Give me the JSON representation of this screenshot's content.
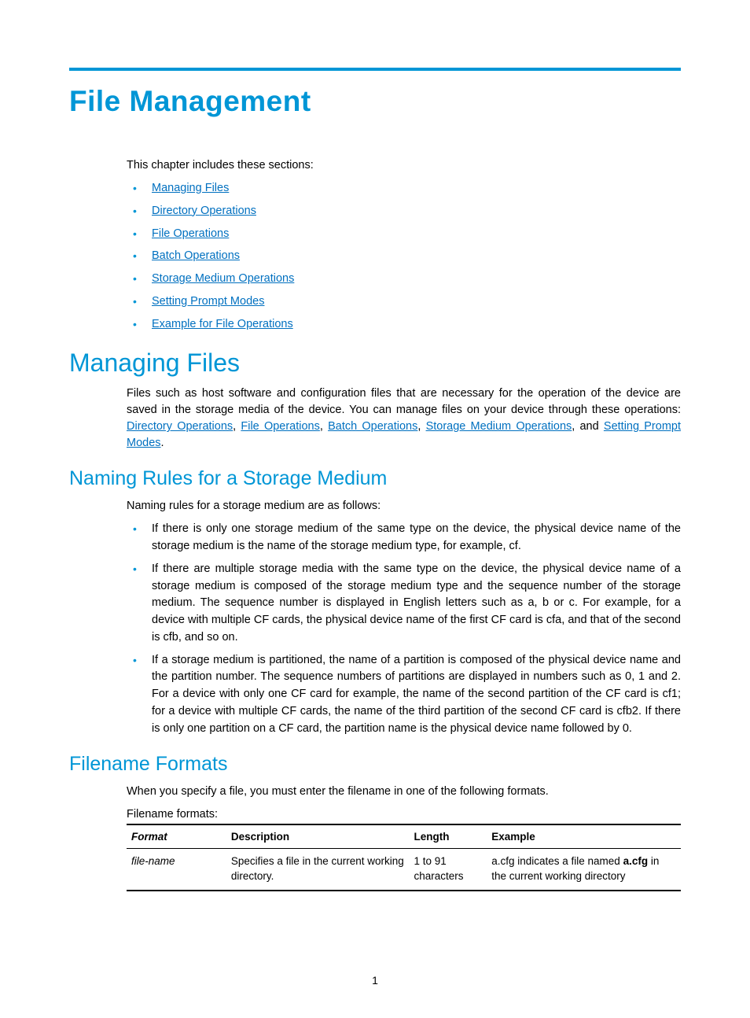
{
  "colors": {
    "accent": "#0096d6",
    "link": "#0070c0",
    "text": "#000000",
    "background": "#ffffff"
  },
  "title": "File Management",
  "intro": "This chapter includes these sections:",
  "toc": [
    "Managing Files",
    "Directory Operations",
    "File Operations",
    "Batch Operations",
    "Storage Medium Operations",
    "Setting Prompt Modes",
    "Example for File Operations"
  ],
  "sections": {
    "managing": {
      "heading": "Managing Files",
      "para_pre": "Files such as host software and configuration files that are necessary for the operation of the device are saved in the storage media of the device. You can manage files on your device through these operations: ",
      "links": [
        "Directory Operations",
        "File Operations",
        "Batch Operations",
        "Storage Medium Operations"
      ],
      "and_word": ", and ",
      "last_link": "Setting Prompt Modes",
      "period": "."
    },
    "naming": {
      "heading": "Naming Rules for a Storage Medium",
      "lead": "Naming rules for a storage medium are as follows:",
      "bullets": [
        "If there is only one storage medium of the same type on the device, the physical device name of the storage medium is the name of the storage medium type, for example, cf.",
        "If there are multiple storage media with the same type on the device, the physical device name of a storage medium is composed of the storage medium type and the sequence number of the storage medium. The sequence number is displayed in English letters such as a, b or c. For example, for a device with multiple CF cards, the physical device name of the first CF card is cfa, and that of the second is cfb, and so on.",
        "If a storage medium is partitioned, the name of a partition is composed of the physical device name and the partition number. The sequence numbers of partitions are displayed in numbers such as 0, 1 and 2. For a device with only one CF card for example, the name of the second partition of the CF card is cf1; for a device with multiple CF cards, the name of the third partition of the second CF card is cfb2. If there is only one partition on a CF card, the partition name is the physical device name followed by 0."
      ]
    },
    "formats": {
      "heading": "Filename Formats",
      "lead": "When you specify a file, you must enter the filename in one of the following formats.",
      "caption": "Filename formats:",
      "table": {
        "columns": [
          "Format",
          "Description",
          "Length",
          "Example"
        ],
        "row": {
          "format": "file-name",
          "description": "Specifies a file in the current working directory.",
          "length": "1 to 91 characters",
          "example_pre": "a.cfg indicates a file named ",
          "example_bold": "a.cfg",
          "example_post": " in the current working directory"
        }
      }
    }
  },
  "page_number": "1"
}
